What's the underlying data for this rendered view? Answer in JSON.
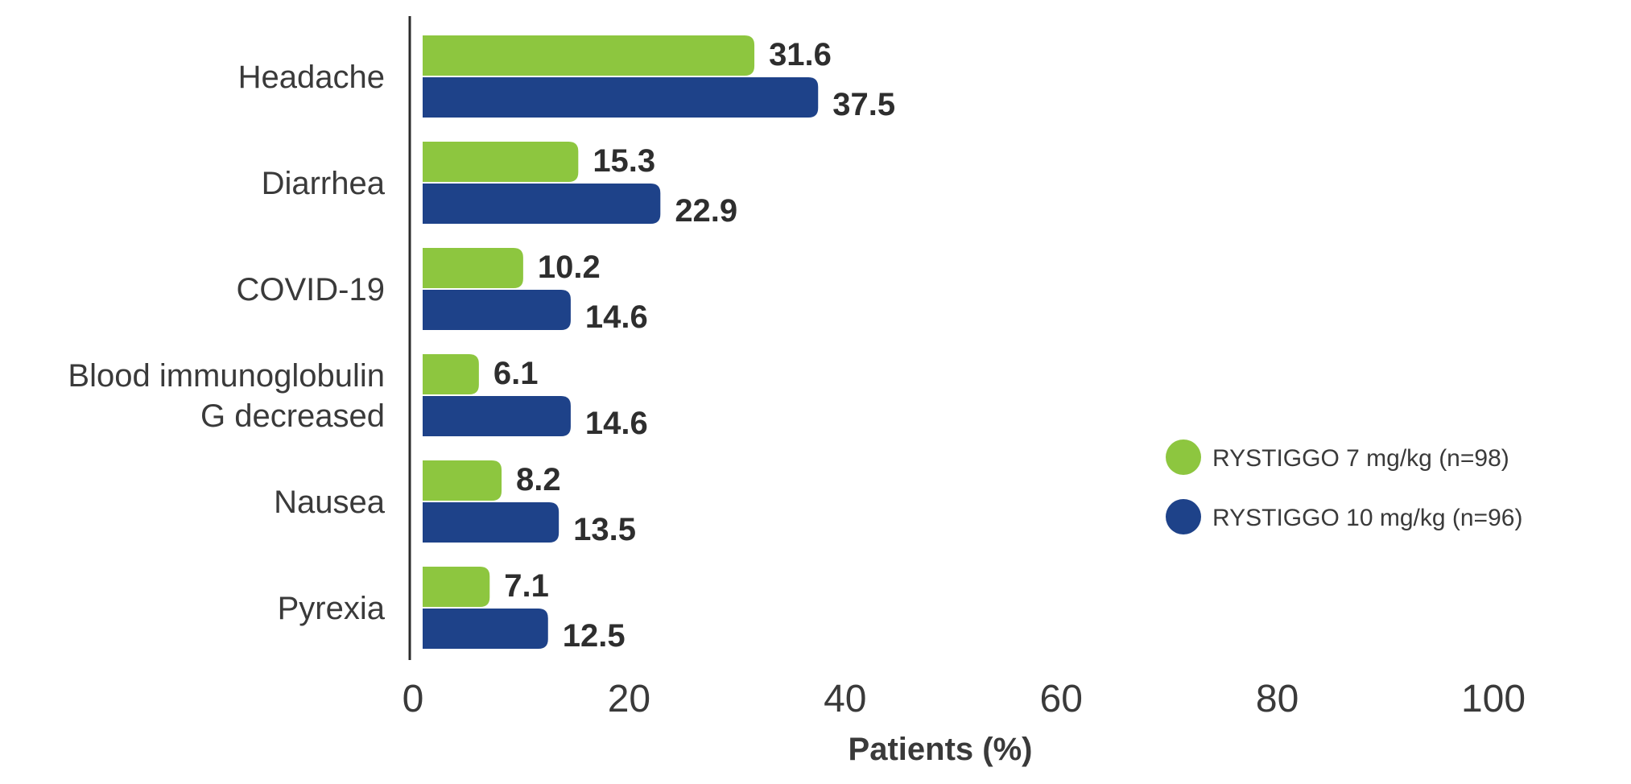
{
  "chart_data": {
    "type": "bar",
    "orientation": "horizontal",
    "categories": [
      [
        "Headache"
      ],
      [
        "Diarrhea"
      ],
      [
        "COVID-19"
      ],
      [
        "Blood immunoglobulin",
        "G decreased"
      ],
      [
        "Nausea"
      ],
      [
        "Pyrexia"
      ]
    ],
    "series": [
      {
        "name": "RYSTIGGO 7 mg/kg (n=98)",
        "color": "#8dc63f",
        "values": [
          31.6,
          15.3,
          10.2,
          6.1,
          8.2,
          7.1
        ],
        "labels": [
          "31.6",
          "15.3",
          "10.2",
          "6.1",
          "8.2",
          "7.1"
        ]
      },
      {
        "name": "RYSTIGGO 10 mg/kg (n=96)",
        "color": "#1e4289",
        "values": [
          37.5,
          22.9,
          14.6,
          14.6,
          13.5,
          12.5
        ],
        "labels": [
          "37.5",
          "22.9",
          "14.6",
          "14.6",
          "13.5",
          "12.5"
        ]
      }
    ],
    "xlim": [
      0,
      100
    ],
    "xticks": [
      0,
      20,
      40,
      60,
      80,
      100
    ],
    "xtick_labels": [
      "0",
      "20",
      "40",
      "60",
      "80",
      "100"
    ],
    "xlabel": "Patients (%)",
    "ylabel": "",
    "title": "",
    "grid": false,
    "legend_position": "center-right",
    "axis_color": "#2b2b2b"
  }
}
